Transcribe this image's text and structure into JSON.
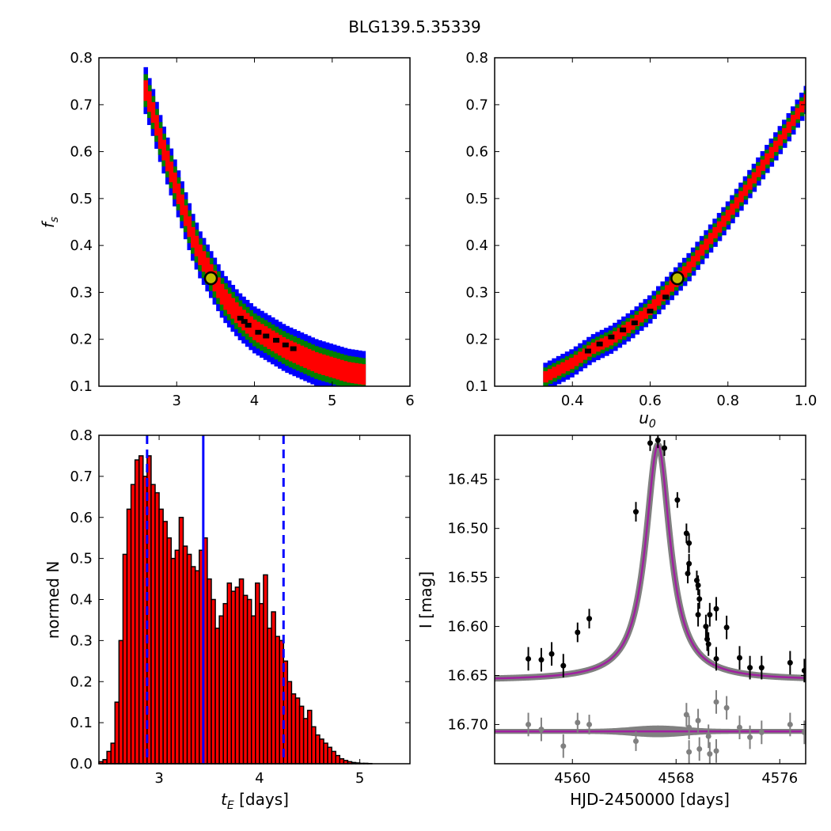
{
  "title": "BLG139.5.35339",
  "chart_data": [
    {
      "id": "fs-vs-tE",
      "type": "heatmap",
      "title": "",
      "xlabel": "",
      "ylabel": "f_s",
      "xlim": [
        2,
        6
      ],
      "ylim": [
        0.1,
        0.8
      ],
      "xticks": [
        3,
        4,
        5,
        6
      ],
      "yticks": [
        0.1,
        0.2,
        0.3,
        0.4,
        0.5,
        0.6,
        0.7,
        0.8
      ],
      "ytick_labels": [
        "0.1",
        "0.2",
        "0.3",
        "0.4",
        "0.5",
        "0.6",
        "0.7",
        "0.8"
      ],
      "levels": [
        "3-sigma (blue)",
        "2-sigma (green)",
        "1-sigma (red)",
        "best (black)"
      ],
      "colors": {
        "blue": "#0000ff",
        "green": "#007f00",
        "red": "#ff0000",
        "black": "#000000",
        "marker_fill": "#bfbf00"
      },
      "ridge_x": [
        2.6,
        2.7,
        2.8,
        2.9,
        3.0,
        3.1,
        3.2,
        3.3,
        3.4,
        3.5,
        3.6,
        3.7,
        3.8,
        3.9,
        4.0,
        4.2,
        4.4,
        4.6,
        4.8,
        5.0,
        5.2,
        5.4
      ],
      "ridge_y": [
        0.73,
        0.68,
        0.62,
        0.57,
        0.52,
        0.47,
        0.42,
        0.38,
        0.35,
        0.32,
        0.29,
        0.27,
        0.25,
        0.235,
        0.22,
        0.2,
        0.18,
        0.165,
        0.15,
        0.14,
        0.13,
        0.125
      ],
      "best_fit": {
        "x": 3.44,
        "y": 0.33
      },
      "best_points": [
        [
          3.82,
          0.245
        ],
        [
          3.87,
          0.238
        ],
        [
          3.92,
          0.23
        ],
        [
          4.05,
          0.215
        ],
        [
          4.15,
          0.207
        ],
        [
          4.28,
          0.198
        ],
        [
          4.4,
          0.188
        ],
        [
          4.5,
          0.18
        ]
      ]
    },
    {
      "id": "fs-vs-u0",
      "type": "heatmap",
      "title": "",
      "xlabel": "u_0",
      "ylabel": "",
      "xlim": [
        0.2,
        1.0
      ],
      "ylim": [
        0.1,
        0.8
      ],
      "xticks": [
        0.4,
        0.6,
        0.8,
        1.0
      ],
      "xtick_labels": [
        "0.4",
        "0.6",
        "0.8",
        "1.0"
      ],
      "yticks": [
        0.1,
        0.2,
        0.3,
        0.4,
        0.5,
        0.6,
        0.7,
        0.8
      ],
      "ytick_labels": [
        "0.1",
        "0.2",
        "0.3",
        "0.4",
        "0.5",
        "0.6",
        "0.7",
        "0.8"
      ],
      "ridge_x": [
        0.33,
        0.4,
        0.45,
        0.5,
        0.55,
        0.6,
        0.65,
        0.7,
        0.75,
        0.8,
        0.85,
        0.9,
        0.95,
        1.0
      ],
      "ridge_y": [
        0.12,
        0.15,
        0.18,
        0.2,
        0.23,
        0.265,
        0.31,
        0.355,
        0.41,
        0.465,
        0.525,
        0.585,
        0.645,
        0.71
      ],
      "best_fit": {
        "x": 0.67,
        "y": 0.33
      },
      "best_points": [
        [
          0.44,
          0.175
        ],
        [
          0.47,
          0.19
        ],
        [
          0.5,
          0.205
        ],
        [
          0.53,
          0.22
        ],
        [
          0.56,
          0.235
        ],
        [
          0.6,
          0.26
        ],
        [
          0.64,
          0.29
        ]
      ]
    },
    {
      "id": "tE-histogram",
      "type": "bar",
      "title": "",
      "xlabel": "t_E [days]",
      "ylabel": "normed N",
      "xlim": [
        2.4,
        5.5
      ],
      "ylim": [
        0.0,
        0.8
      ],
      "xticks": [
        3,
        4,
        5
      ],
      "yticks": [
        0.0,
        0.1,
        0.2,
        0.3,
        0.4,
        0.5,
        0.6,
        0.7,
        0.8
      ],
      "ytick_labels": [
        "0.0",
        "0.1",
        "0.2",
        "0.3",
        "0.4",
        "0.5",
        "0.6",
        "0.7",
        "0.8"
      ],
      "bin_start": 2.4,
      "bin_width": 0.04,
      "values": [
        0.005,
        0.01,
        0.03,
        0.05,
        0.15,
        0.3,
        0.51,
        0.62,
        0.68,
        0.74,
        0.75,
        0.7,
        0.75,
        0.68,
        0.66,
        0.62,
        0.59,
        0.55,
        0.5,
        0.52,
        0.6,
        0.53,
        0.51,
        0.48,
        0.47,
        0.52,
        0.55,
        0.45,
        0.4,
        0.33,
        0.36,
        0.39,
        0.44,
        0.42,
        0.43,
        0.45,
        0.41,
        0.4,
        0.36,
        0.44,
        0.39,
        0.46,
        0.33,
        0.37,
        0.31,
        0.3,
        0.25,
        0.2,
        0.17,
        0.16,
        0.14,
        0.11,
        0.13,
        0.09,
        0.07,
        0.06,
        0.05,
        0.04,
        0.03,
        0.02,
        0.012,
        0.008,
        0.005,
        0.003,
        0.002,
        0.001,
        0.001,
        0.0005
      ],
      "bar_color": "#ff0000",
      "median": 3.44,
      "lower": 2.88,
      "upper": 4.24,
      "line_color": "#0000ff"
    },
    {
      "id": "lightcurve",
      "type": "scatter",
      "title": "",
      "xlabel": "HJD-2450000 [days]",
      "ylabel": "I [mag]",
      "xlim": [
        4554,
        4578
      ],
      "ylim": [
        16.74,
        16.405
      ],
      "xticks": [
        4560,
        4568,
        4576
      ],
      "yticks": [
        16.45,
        16.5,
        16.55,
        16.6,
        16.65,
        16.7
      ],
      "ytick_labels": [
        "16.45",
        "16.50",
        "16.55",
        "16.60",
        "16.65",
        "16.70"
      ],
      "model": {
        "t0": 4566.6,
        "baseline": 16.655,
        "depth": 0.24,
        "tau": 1.15,
        "color": "#a020a0",
        "band_color": "#808080"
      },
      "residual_baseline": 16.707,
      "data": [
        {
          "x": 4556.6,
          "y": 16.633,
          "err": 0.012
        },
        {
          "x": 4557.6,
          "y": 16.634,
          "err": 0.012
        },
        {
          "x": 4558.4,
          "y": 16.628,
          "err": 0.012
        },
        {
          "x": 4559.3,
          "y": 16.64,
          "err": 0.012
        },
        {
          "x": 4560.4,
          "y": 16.606,
          "err": 0.01
        },
        {
          "x": 4561.3,
          "y": 16.592,
          "err": 0.01
        },
        {
          "x": 4564.9,
          "y": 16.483,
          "err": 0.01
        },
        {
          "x": 4566.0,
          "y": 16.413,
          "err": 0.008
        },
        {
          "x": 4566.6,
          "y": 16.41,
          "err": 0.008
        },
        {
          "x": 4567.1,
          "y": 16.418,
          "err": 0.008
        },
        {
          "x": 4568.1,
          "y": 16.471,
          "err": 0.008
        },
        {
          "x": 4568.8,
          "y": 16.505,
          "err": 0.01
        },
        {
          "x": 4569.0,
          "y": 16.515,
          "err": 0.01
        },
        {
          "x": 4568.9,
          "y": 16.546,
          "err": 0.01
        },
        {
          "x": 4569.0,
          "y": 16.536,
          "err": 0.01
        },
        {
          "x": 4569.6,
          "y": 16.553,
          "err": 0.01
        },
        {
          "x": 4569.7,
          "y": 16.558,
          "err": 0.01
        },
        {
          "x": 4569.8,
          "y": 16.572,
          "err": 0.01
        },
        {
          "x": 4569.7,
          "y": 16.588,
          "err": 0.012
        },
        {
          "x": 4570.3,
          "y": 16.6,
          "err": 0.012
        },
        {
          "x": 4570.4,
          "y": 16.613,
          "err": 0.012
        },
        {
          "x": 4570.6,
          "y": 16.588,
          "err": 0.012
        },
        {
          "x": 4570.5,
          "y": 16.618,
          "err": 0.012
        },
        {
          "x": 4571.1,
          "y": 16.582,
          "err": 0.012
        },
        {
          "x": 4571.1,
          "y": 16.633,
          "err": 0.012
        },
        {
          "x": 4571.9,
          "y": 16.601,
          "err": 0.012
        },
        {
          "x": 4572.9,
          "y": 16.632,
          "err": 0.012
        },
        {
          "x": 4573.7,
          "y": 16.642,
          "err": 0.012
        },
        {
          "x": 4574.6,
          "y": 16.642,
          "err": 0.012
        },
        {
          "x": 4576.8,
          "y": 16.637,
          "err": 0.012
        },
        {
          "x": 4577.9,
          "y": 16.645,
          "err": 0.012
        }
      ],
      "residuals": [
        {
          "x": 4556.6,
          "y": 16.7,
          "err": 0.012
        },
        {
          "x": 4557.6,
          "y": 16.705,
          "err": 0.012
        },
        {
          "x": 4559.3,
          "y": 16.722,
          "err": 0.012
        },
        {
          "x": 4560.4,
          "y": 16.698,
          "err": 0.01
        },
        {
          "x": 4561.3,
          "y": 16.7,
          "err": 0.01
        },
        {
          "x": 4564.9,
          "y": 16.717,
          "err": 0.01
        },
        {
          "x": 4568.8,
          "y": 16.69,
          "err": 0.012
        },
        {
          "x": 4569.0,
          "y": 16.703,
          "err": 0.012
        },
        {
          "x": 4569.0,
          "y": 16.728,
          "err": 0.012
        },
        {
          "x": 4569.7,
          "y": 16.696,
          "err": 0.012
        },
        {
          "x": 4569.8,
          "y": 16.725,
          "err": 0.012
        },
        {
          "x": 4570.5,
          "y": 16.712,
          "err": 0.012
        },
        {
          "x": 4570.6,
          "y": 16.73,
          "err": 0.012
        },
        {
          "x": 4571.1,
          "y": 16.677,
          "err": 0.012
        },
        {
          "x": 4571.1,
          "y": 16.727,
          "err": 0.012
        },
        {
          "x": 4571.9,
          "y": 16.683,
          "err": 0.012
        },
        {
          "x": 4572.9,
          "y": 16.703,
          "err": 0.012
        },
        {
          "x": 4573.7,
          "y": 16.713,
          "err": 0.012
        },
        {
          "x": 4574.6,
          "y": 16.708,
          "err": 0.012
        },
        {
          "x": 4576.8,
          "y": 16.7,
          "err": 0.012
        },
        {
          "x": 4577.9,
          "y": 16.708,
          "err": 0.012
        }
      ],
      "point_color": "#000000",
      "residual_color": "#808080"
    }
  ]
}
